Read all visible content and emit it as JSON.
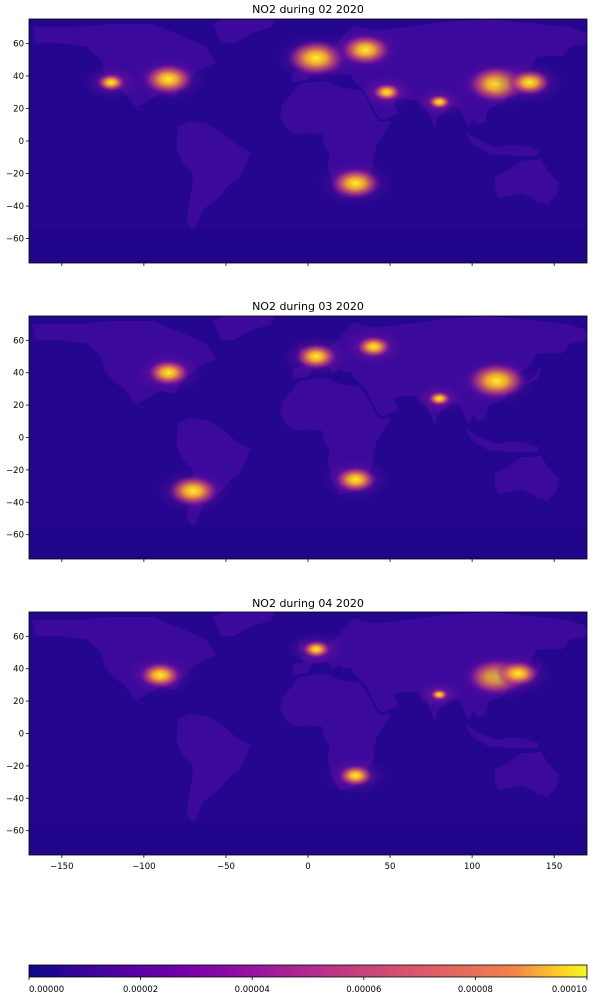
{
  "figure": {
    "panels": [
      {
        "title": "NO2 during 02 2020"
      },
      {
        "title": "NO2 during 03 2020"
      },
      {
        "title": "NO2 during 04 2020"
      }
    ]
  },
  "chart_data": [
    {
      "type": "heatmap",
      "title": "NO2 during 02 2020",
      "xlim": [
        -170,
        170
      ],
      "ylim": [
        -75,
        75
      ],
      "x_ticks": [],
      "y_ticks": [
        60,
        40,
        20,
        0,
        -20,
        -40,
        -60
      ],
      "y_tick_labels": [
        "60",
        "40",
        "20",
        "0",
        "−20",
        "−40",
        "−60"
      ],
      "colormap": "plasma",
      "clim": [
        0,
        0.0001
      ],
      "hotspots": [
        {
          "name": "Eastern United States",
          "lon": -85,
          "lat": 38,
          "level": 9e-05
        },
        {
          "name": "Western Europe",
          "lon": 5,
          "lat": 51,
          "level": 0.0001
        },
        {
          "name": "Eastern Europe / Russia",
          "lon": 35,
          "lat": 56,
          "level": 9e-05
        },
        {
          "name": "North China Plain",
          "lon": 115,
          "lat": 35,
          "level": 0.0001
        },
        {
          "name": "Japan / Korea",
          "lon": 135,
          "lat": 36,
          "level": 8e-05
        },
        {
          "name": "Middle East",
          "lon": 48,
          "lat": 30,
          "level": 6e-05
        },
        {
          "name": "India",
          "lon": 80,
          "lat": 24,
          "level": 5e-05
        },
        {
          "name": "South Africa Highveld",
          "lon": 29,
          "lat": -26,
          "level": 9e-05
        },
        {
          "name": "California",
          "lon": -120,
          "lat": 36,
          "level": 6e-05
        }
      ]
    },
    {
      "type": "heatmap",
      "title": "NO2 during 03 2020",
      "xlim": [
        -170,
        170
      ],
      "ylim": [
        -75,
        75
      ],
      "x_ticks": [],
      "y_ticks": [
        60,
        40,
        20,
        0,
        -20,
        -40,
        -60
      ],
      "y_tick_labels": [
        "60",
        "40",
        "20",
        "0",
        "−20",
        "−40",
        "−60"
      ],
      "colormap": "plasma",
      "clim": [
        0,
        0.0001
      ],
      "hotspots": [
        {
          "name": "Eastern United States",
          "lon": -85,
          "lat": 40,
          "level": 8e-05
        },
        {
          "name": "Western Europe",
          "lon": 5,
          "lat": 50,
          "level": 8e-05
        },
        {
          "name": "Eastern Europe / Russia",
          "lon": 40,
          "lat": 56,
          "level": 7e-05
        },
        {
          "name": "North China Plain",
          "lon": 115,
          "lat": 35,
          "level": 0.0001
        },
        {
          "name": "India",
          "lon": 80,
          "lat": 24,
          "level": 5e-05
        },
        {
          "name": "South Africa Highveld",
          "lon": 29,
          "lat": -26,
          "level": 8e-05
        },
        {
          "name": "Santiago",
          "lon": -70,
          "lat": -33,
          "level": 9e-05
        }
      ]
    },
    {
      "type": "heatmap",
      "title": "NO2 during 04 2020",
      "xlim": [
        -170,
        170
      ],
      "ylim": [
        -75,
        75
      ],
      "x_ticks": [
        -150,
        -100,
        -50,
        0,
        50,
        100,
        150
      ],
      "x_tick_labels": [
        "−150",
        "−100",
        "−50",
        "0",
        "50",
        "100",
        "150"
      ],
      "y_ticks": [
        60,
        40,
        20,
        0,
        -20,
        -40,
        -60
      ],
      "y_tick_labels": [
        "60",
        "40",
        "20",
        "0",
        "−20",
        "−40",
        "−60"
      ],
      "colormap": "plasma",
      "clim": [
        0,
        0.0001
      ],
      "hotspots": [
        {
          "name": "Eastern United States",
          "lon": -90,
          "lat": 36,
          "level": 8e-05
        },
        {
          "name": "Western Europe",
          "lon": 5,
          "lat": 52,
          "level": 6e-05
        },
        {
          "name": "North China Plain",
          "lon": 115,
          "lat": 35,
          "level": 0.0001
        },
        {
          "name": "Korea / Japan",
          "lon": 128,
          "lat": 37,
          "level": 8e-05
        },
        {
          "name": "India",
          "lon": 80,
          "lat": 24,
          "level": 4e-05
        },
        {
          "name": "South Africa Highveld",
          "lon": 29,
          "lat": -26,
          "level": 7e-05
        }
      ]
    }
  ],
  "colorbar": {
    "type": "colorbar",
    "colormap": "plasma",
    "range": [
      0,
      0.0001
    ],
    "ticks": [
      0,
      2e-05,
      4e-05,
      6e-05,
      8e-05,
      0.0001
    ],
    "tick_labels": [
      "0.00000",
      "0.00002",
      "0.00004",
      "0.00006",
      "0.00008",
      "0.00010"
    ]
  }
}
